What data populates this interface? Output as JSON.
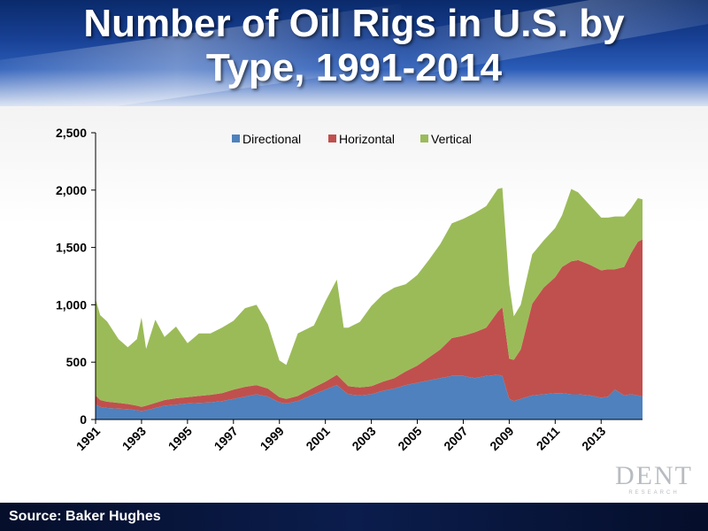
{
  "header": {
    "title": "Number of Oil Rigs in U.S. by Type, 1991-2014"
  },
  "footer": {
    "source": "Source: Baker Hughes"
  },
  "logo": {
    "main": "DENT",
    "sub": "RESEARCH"
  },
  "colors": {
    "Directional": "#4e81bd",
    "Horizontal": "#c0504d",
    "Vertical": "#9bbb59"
  },
  "chart_data": {
    "type": "area",
    "stacked": true,
    "title": "",
    "xlabel": "",
    "ylabel": "",
    "legend_position": "top",
    "ylim": [
      0,
      2500
    ],
    "yticks": [
      0,
      500,
      1000,
      1500,
      2000,
      2500
    ],
    "ytick_labels": [
      "0",
      "500",
      "1,000",
      "1,500",
      "2,000",
      "2,500"
    ],
    "xlim": [
      1991,
      2014.8
    ],
    "xticks": [
      1991,
      1993,
      1995,
      1997,
      1999,
      2001,
      2003,
      2005,
      2007,
      2009,
      2011,
      2013
    ],
    "xtick_labels": [
      "1991",
      "1993",
      "1995",
      "1997",
      "1999",
      "2001",
      "2003",
      "2005",
      "2007",
      "2009",
      "2011",
      "2013"
    ],
    "x": [
      1991.0,
      1991.2,
      1991.5,
      1992.0,
      1992.4,
      1992.8,
      1993.0,
      1993.2,
      1993.6,
      1994.0,
      1994.5,
      1995.0,
      1995.5,
      1996.0,
      1996.5,
      1997.0,
      1997.5,
      1998.0,
      1998.5,
      1999.0,
      1999.3,
      1999.8,
      2000.5,
      2001.0,
      2001.5,
      2001.8,
      2002.0,
      2002.5,
      2003.0,
      2003.5,
      2004.0,
      2004.5,
      2005.0,
      2005.5,
      2006.0,
      2006.5,
      2007.0,
      2007.5,
      2008.0,
      2008.5,
      2008.7,
      2009.0,
      2009.2,
      2009.5,
      2010.0,
      2010.5,
      2011.0,
      2011.3,
      2011.7,
      2012.0,
      2012.5,
      2013.0,
      2013.3,
      2013.6,
      2014.0,
      2014.3,
      2014.6,
      2014.8
    ],
    "series": [
      {
        "name": "Directional",
        "values": [
          130,
          110,
          100,
          95,
          90,
          80,
          75,
          80,
          100,
          120,
          130,
          140,
          145,
          150,
          160,
          180,
          200,
          220,
          200,
          150,
          140,
          160,
          220,
          260,
          300,
          250,
          220,
          210,
          220,
          250,
          270,
          300,
          320,
          340,
          360,
          380,
          380,
          360,
          380,
          390,
          380,
          180,
          160,
          180,
          210,
          220,
          230,
          230,
          220,
          220,
          210,
          190,
          200,
          260,
          210,
          220,
          210,
          200
        ]
      },
      {
        "name": "Horizontal",
        "values": [
          80,
          60,
          55,
          50,
          45,
          40,
          35,
          40,
          45,
          50,
          55,
          55,
          60,
          65,
          70,
          80,
          85,
          80,
          70,
          45,
          40,
          45,
          60,
          70,
          90,
          80,
          70,
          70,
          70,
          80,
          90,
          120,
          150,
          200,
          250,
          330,
          350,
          400,
          420,
          550,
          600,
          350,
          360,
          430,
          800,
          930,
          1010,
          1100,
          1160,
          1170,
          1140,
          1110,
          1110,
          1050,
          1120,
          1230,
          1340,
          1370
        ]
      },
      {
        "name": "Vertical",
        "values": [
          840,
          740,
          700,
          555,
          495,
          580,
          780,
          495,
          725,
          550,
          625,
          470,
          545,
          535,
          570,
          600,
          685,
          700,
          560,
          320,
          295,
          545,
          540,
          700,
          830,
          470,
          510,
          570,
          700,
          760,
          790,
          760,
          790,
          850,
          920,
          1000,
          1020,
          1040,
          1060,
          1070,
          1040,
          650,
          380,
          390,
          430,
          410,
          430,
          450,
          630,
          590,
          520,
          460,
          450,
          460,
          440,
          390,
          380,
          350
        ]
      }
    ]
  }
}
